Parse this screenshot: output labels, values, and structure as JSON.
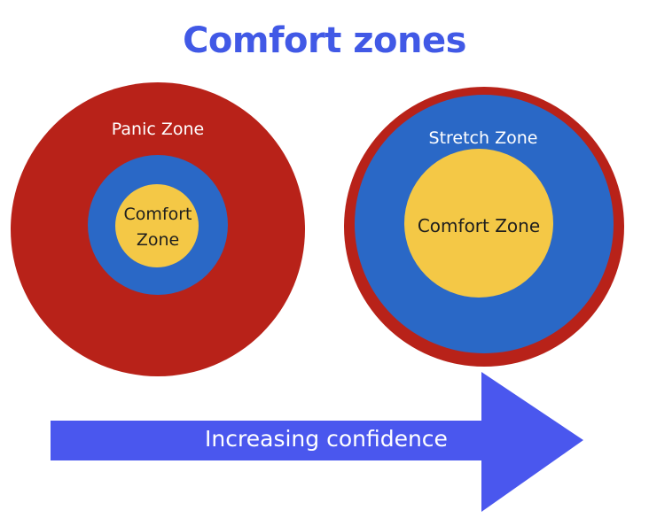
{
  "title": "Comfort zones",
  "left_diagram": {
    "outer_label": "Panic Zone",
    "inner_label_line1": "Comfort",
    "inner_label_line2": "Zone"
  },
  "right_diagram": {
    "middle_label": "Stretch Zone",
    "inner_label": "Comfort Zone"
  },
  "arrow": {
    "label": "Increasing confidence"
  },
  "colors": {
    "title": "#4159e6",
    "panic": "#b82219",
    "stretch": "#2a68c6",
    "comfort": "#f4c846",
    "arrow": "#4a57ee",
    "label_light": "#ffffff",
    "label_dark": "#1e1e1e"
  }
}
